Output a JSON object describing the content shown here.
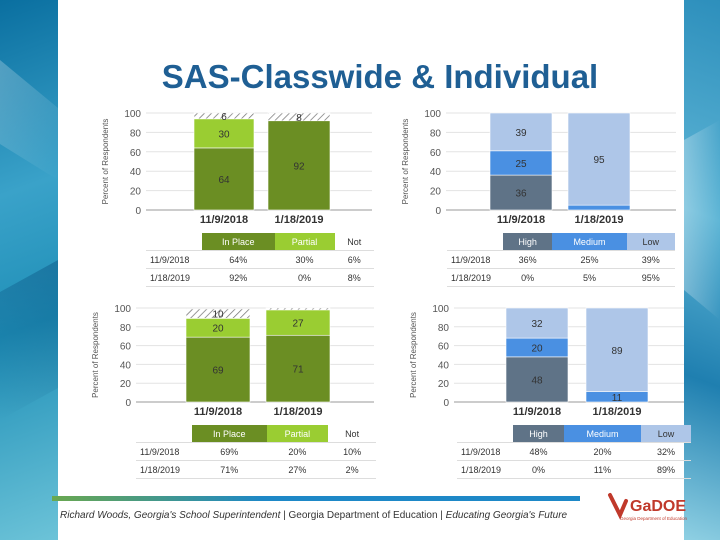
{
  "page": {
    "title": "SAS-Classwide & Individual",
    "footer": {
      "part1": "Richard Woods, Georgia's School Superintendent",
      "sep": " | ",
      "part2": "Georgia Department of Education",
      "part3": "Educating Georgia's Future"
    },
    "logo": {
      "text": "GaDOE",
      "subtext": "Georgia Department of Education"
    }
  },
  "colors": {
    "green_dark": "#6b8e23",
    "green_light": "#9acd32",
    "blue_dark": "#5f7387",
    "blue_mid": "#4a90e2",
    "blue_light": "#aec6e8",
    "hatch": "#777777",
    "title": "#1f5f94"
  },
  "chart_data": [
    {
      "type": "bar",
      "stacked": true,
      "ylabel": "Percent of Respondents",
      "ylim": [
        0,
        100
      ],
      "yticks": [
        0,
        20,
        40,
        60,
        80,
        100
      ],
      "categories": [
        "11/9/2018",
        "1/18/2019"
      ],
      "series": [
        {
          "name": "In Place",
          "color": "#6b8e23",
          "values": [
            64,
            92
          ]
        },
        {
          "name": "Partial",
          "color": "#9acd32",
          "values": [
            30,
            0
          ]
        },
        {
          "name": "Not",
          "color": "hatch",
          "values": [
            6,
            8
          ]
        }
      ],
      "labels": [
        [
          "64",
          "30",
          "6"
        ],
        [
          "92",
          "",
          "8"
        ]
      ],
      "table": {
        "headers": [
          "In Place",
          "Partial",
          "Not"
        ],
        "header_colors": [
          "#6b8e23",
          "#9acd32",
          "#ffffff"
        ],
        "rows": [
          {
            "date": "11/9/2018",
            "cells": [
              "64%",
              "30%",
              "6%"
            ]
          },
          {
            "date": "1/18/2019",
            "cells": [
              "92%",
              "0%",
              "8%"
            ]
          }
        ]
      }
    },
    {
      "type": "bar",
      "stacked": true,
      "ylabel": "Percent of Respondents",
      "ylim": [
        0,
        100
      ],
      "yticks": [
        0,
        20,
        40,
        60,
        80,
        100
      ],
      "categories": [
        "11/9/2018",
        "1/18/2019"
      ],
      "series": [
        {
          "name": "High",
          "color": "#5f7387",
          "values": [
            36,
            0
          ]
        },
        {
          "name": "Medium",
          "color": "#4a90e2",
          "values": [
            25,
            5
          ]
        },
        {
          "name": "Low",
          "color": "#aec6e8",
          "values": [
            39,
            95
          ]
        }
      ],
      "labels": [
        [
          "36",
          "25",
          "39"
        ],
        [
          "",
          "",
          "95"
        ]
      ],
      "table": {
        "headers": [
          "High",
          "Medium",
          "Low"
        ],
        "header_colors": [
          "#5f7387",
          "#4a90e2",
          "#aec6e8"
        ],
        "rows": [
          {
            "date": "11/9/2018",
            "cells": [
              "36%",
              "25%",
              "39%"
            ]
          },
          {
            "date": "1/18/2019",
            "cells": [
              "0%",
              "5%",
              "95%"
            ]
          }
        ]
      }
    },
    {
      "type": "bar",
      "stacked": true,
      "ylabel": "Percent of Respondents",
      "ylim": [
        0,
        100
      ],
      "yticks": [
        0,
        20,
        40,
        60,
        80,
        100
      ],
      "categories": [
        "11/9/2018",
        "1/18/2019"
      ],
      "series": [
        {
          "name": "In Place",
          "color": "#6b8e23",
          "values": [
            69,
            71
          ]
        },
        {
          "name": "Partial",
          "color": "#9acd32",
          "values": [
            20,
            27
          ]
        },
        {
          "name": "Not",
          "color": "hatch",
          "values": [
            10,
            2
          ]
        }
      ],
      "labels": [
        [
          "69",
          "20",
          "10"
        ],
        [
          "71",
          "27",
          ""
        ]
      ],
      "table": {
        "headers": [
          "In Place",
          "Partial",
          "Not"
        ],
        "header_colors": [
          "#6b8e23",
          "#9acd32",
          "#ffffff"
        ],
        "rows": [
          {
            "date": "11/9/2018",
            "cells": [
              "69%",
              "20%",
              "10%"
            ]
          },
          {
            "date": "1/18/2019",
            "cells": [
              "71%",
              "27%",
              "2%"
            ]
          }
        ]
      }
    },
    {
      "type": "bar",
      "stacked": true,
      "ylabel": "Percent of Respondents",
      "ylim": [
        0,
        100
      ],
      "yticks": [
        0,
        20,
        40,
        60,
        80,
        100
      ],
      "categories": [
        "11/9/2018",
        "1/18/2019"
      ],
      "series": [
        {
          "name": "High",
          "color": "#5f7387",
          "values": [
            48,
            0
          ]
        },
        {
          "name": "Medium",
          "color": "#4a90e2",
          "values": [
            20,
            11
          ]
        },
        {
          "name": "Low",
          "color": "#aec6e8",
          "values": [
            32,
            89
          ]
        }
      ],
      "labels": [
        [
          "48",
          "20",
          "32"
        ],
        [
          "",
          "11",
          "89"
        ]
      ],
      "table": {
        "headers": [
          "High",
          "Medium",
          "Low"
        ],
        "header_colors": [
          "#5f7387",
          "#4a90e2",
          "#aec6e8"
        ],
        "rows": [
          {
            "date": "11/9/2018",
            "cells": [
              "48%",
              "20%",
              "32%"
            ]
          },
          {
            "date": "1/18/2019",
            "cells": [
              "0%",
              "11%",
              "89%"
            ]
          }
        ]
      }
    }
  ]
}
